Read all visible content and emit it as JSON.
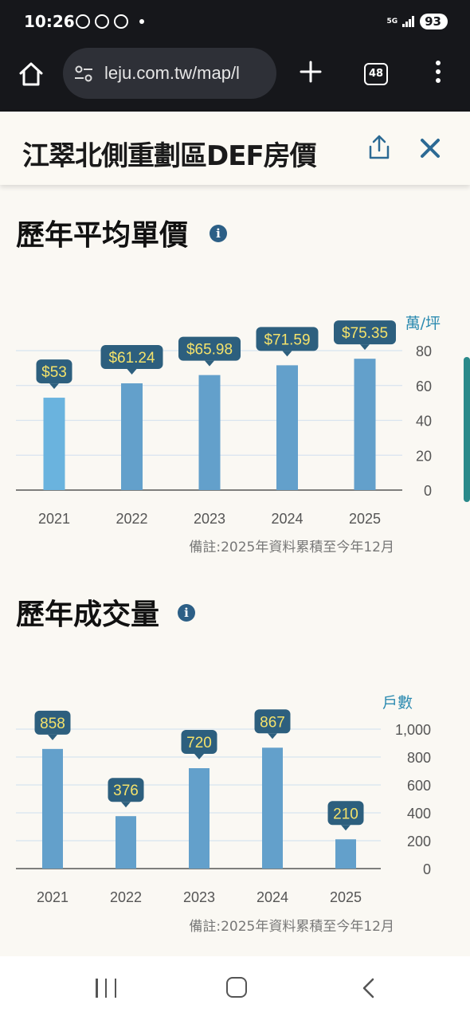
{
  "status_bar": {
    "time": "10:26",
    "network": "5G",
    "battery": "93"
  },
  "browser": {
    "url": "leju.com.tw/map/l",
    "tab_count": "48"
  },
  "header": {
    "title": "江翠北側重劃區DEF房價"
  },
  "sections": {
    "price": {
      "title": "歷年平均單價",
      "info": "i",
      "note": "備註:2025年資料累積至今年12月"
    },
    "volume": {
      "title": "歷年成交量",
      "info": "i",
      "note": "備註:2025年資料累積至今年12月"
    }
  },
  "chart_data": [
    {
      "type": "bar",
      "categories": [
        "2021",
        "2022",
        "2023",
        "2024",
        "2025"
      ],
      "values": [
        53,
        61.24,
        65.98,
        71.59,
        75.35
      ],
      "data_labels": [
        "$53",
        "$61.24",
        "$65.98",
        "$71.59",
        "$75.35"
      ],
      "ylabel": "萬/坪",
      "ylim": [
        0,
        80
      ],
      "yticks": [
        0,
        20,
        40,
        60,
        80
      ],
      "ytick_labels": [
        "0",
        "20",
        "40",
        "60",
        "80"
      ],
      "grid": true,
      "colors": {
        "bar": "#63a0cb",
        "bar_first": "#6ab3de",
        "label_bg": "#2d5f7e",
        "label_text": "#f4e26b",
        "grid": "#d8e4f0",
        "ylabel": "#2b8ab0"
      }
    },
    {
      "type": "bar",
      "categories": [
        "2021",
        "2022",
        "2023",
        "2024",
        "2025"
      ],
      "values": [
        858,
        376,
        720,
        867,
        210
      ],
      "data_labels": [
        "858",
        "376",
        "720",
        "867",
        "210"
      ],
      "ylabel": "戶數",
      "ylim": [
        0,
        1000
      ],
      "yticks": [
        0,
        200,
        400,
        600,
        800,
        1000
      ],
      "ytick_labels": [
        "0",
        "200",
        "400",
        "600",
        "800",
        "1,000"
      ],
      "grid": true,
      "colors": {
        "bar": "#63a0cb",
        "label_bg": "#2d5f7e",
        "label_text": "#f4e26b",
        "grid": "#d8e4f0",
        "ylabel": "#2b8ab0"
      }
    }
  ]
}
